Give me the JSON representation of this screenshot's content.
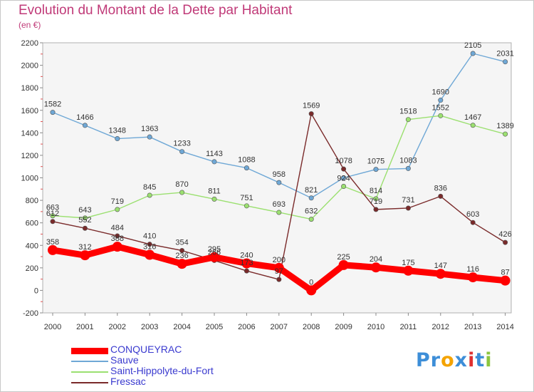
{
  "chart_data": {
    "type": "line",
    "title": "Evolution du Montant de la Dette par Habitant",
    "subtitle": "(en €)",
    "xlabel": "",
    "ylabel": "",
    "x": [
      2000,
      2001,
      2002,
      2003,
      2004,
      2005,
      2006,
      2007,
      2008,
      2009,
      2010,
      2011,
      2012,
      2013,
      2014
    ],
    "ylim": [
      -200,
      2200
    ],
    "yticks": [
      -200,
      0,
      200,
      400,
      600,
      800,
      1000,
      1200,
      1400,
      1600,
      1800,
      2000,
      2200
    ],
    "grid": false,
    "legend": "bottom-left",
    "series": [
      {
        "name": "CONQUEYRAC",
        "color": "#ff0000",
        "values": [
          358,
          312,
          388,
          316,
          236,
          295,
          240,
          200,
          0,
          225,
          204,
          175,
          147,
          116,
          87
        ],
        "labels": [
          "358",
          "312",
          "388",
          "316",
          "236",
          "295",
          "240",
          "200",
          "0",
          "225",
          "204",
          "175",
          "147",
          "116",
          "87"
        ]
      },
      {
        "name": "Sauve",
        "color": "#6fa8d6",
        "values": [
          1582,
          1466,
          1348,
          1363,
          1233,
          1143,
          1088,
          958,
          821,
          1000,
          1075,
          1083,
          1690,
          2105,
          2031
        ],
        "labels": [
          "1582",
          "1466",
          "1348",
          "1363",
          "1233",
          "1143",
          "1088",
          "958",
          "821",
          "",
          "1075",
          "1083",
          "1690",
          "2105",
          "2031"
        ]
      },
      {
        "name": "Saint-Hippolyte-du-Fort",
        "color": "#9be070",
        "values": [
          663,
          643,
          719,
          845,
          870,
          811,
          751,
          693,
          632,
          924,
          814,
          1518,
          1552,
          1467,
          1389
        ],
        "labels": [
          "663",
          "643",
          "719",
          "845",
          "870",
          "811",
          "751",
          "693",
          "632",
          "924",
          "814",
          "1518",
          "1552",
          "1467",
          "1389"
        ]
      },
      {
        "name": "Fressac",
        "color": "#7a2a2a",
        "values": [
          612,
          552,
          484,
          410,
          354,
          266,
          173,
          97,
          1569,
          1078,
          719,
          731,
          836,
          603,
          426
        ],
        "labels": [
          "612",
          "552",
          "484",
          "410",
          "354",
          "266",
          "173",
          "97",
          "1569",
          "1078",
          "719",
          "731",
          "836",
          "603",
          "426"
        ]
      }
    ]
  },
  "logo": {
    "parts": [
      {
        "text": "Pr",
        "color": "#3d8ed8"
      },
      {
        "text": "o",
        "color": "#f4a300"
      },
      {
        "text": "x",
        "color": "#3d8ed8"
      },
      {
        "text": "i",
        "color": "#e03030"
      },
      {
        "text": "t",
        "color": "#3d8ed8"
      },
      {
        "text": "i",
        "color": "#8cc63f"
      }
    ]
  }
}
